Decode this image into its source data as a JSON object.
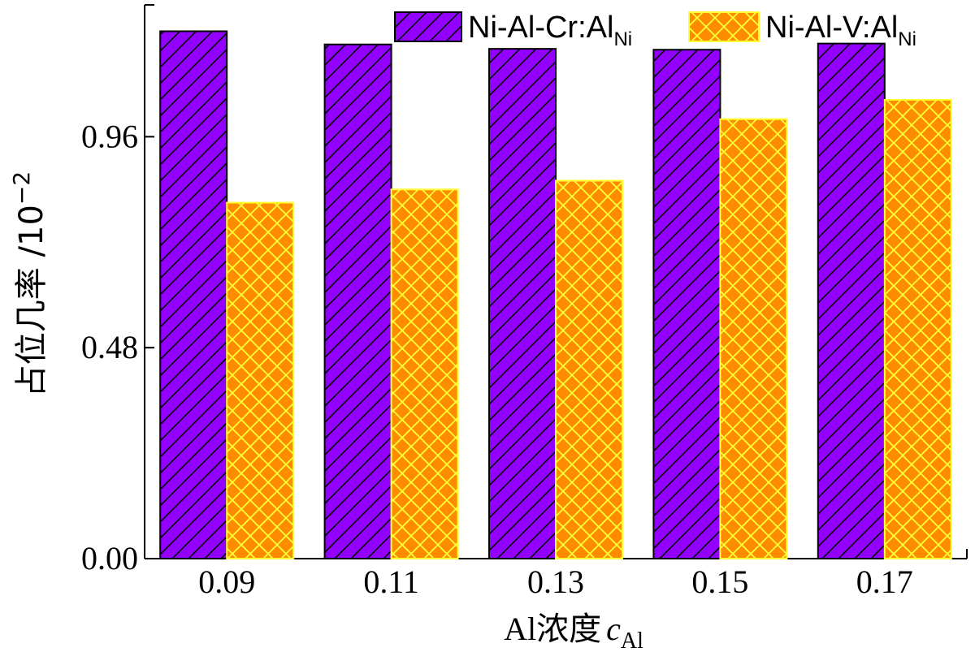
{
  "chart_data": {
    "type": "bar",
    "categories": [
      "0.09",
      "0.11",
      "0.13",
      "0.15",
      "0.17"
    ],
    "series": [
      {
        "name": "Ni-Al-Cr:Al",
        "name_sub": "Ni",
        "values": [
          1.2,
          1.17,
          1.16,
          1.158,
          1.172
        ],
        "color": "#9400ff",
        "hatch_color": "#000000"
      },
      {
        "name": "Ni-Al-V:Al",
        "name_sub": "Ni",
        "values": [
          0.81,
          0.84,
          0.86,
          1.0,
          1.044
        ],
        "color": "#ff8c00",
        "hatch_color": "#ffff33"
      }
    ],
    "xlabel": "Al浓度",
    "xlabel_var": "c",
    "xlabel_sub": "Al",
    "ylabel": "占位几率 /10",
    "ylabel_exp": "−2",
    "yticks": [
      "0.00",
      "0.48",
      "0.96"
    ],
    "ylim": [
      0,
      1.26
    ],
    "grid": false,
    "legend_position": "top-right"
  }
}
